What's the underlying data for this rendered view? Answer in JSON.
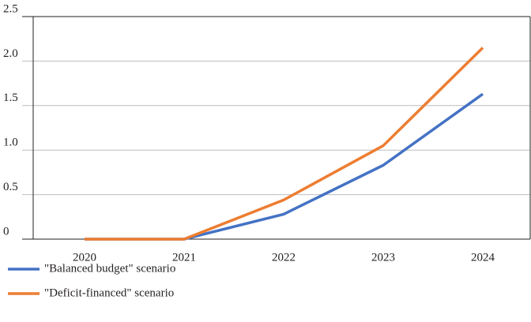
{
  "chart_data": {
    "type": "line",
    "categories": [
      "2020",
      "2021",
      "2022",
      "2023",
      "2024"
    ],
    "series": [
      {
        "name": "\"Balanced budget\" scenario",
        "color": "#4472c4",
        "values": [
          0,
          0,
          0.28,
          0.83,
          1.63
        ]
      },
      {
        "name": "\"Deficit-financed\" scenario",
        "color": "#ed7d31",
        "values": [
          0,
          0,
          0.44,
          1.05,
          2.15
        ]
      }
    ],
    "ylim": [
      0,
      2.5
    ],
    "yticks": [
      0,
      0.5,
      {
        "value": 1,
        "label": "1.0"
      },
      1.5,
      {
        "value": 2,
        "label": "2.0"
      },
      2.5
    ],
    "grid": true,
    "legend": "bottom"
  }
}
